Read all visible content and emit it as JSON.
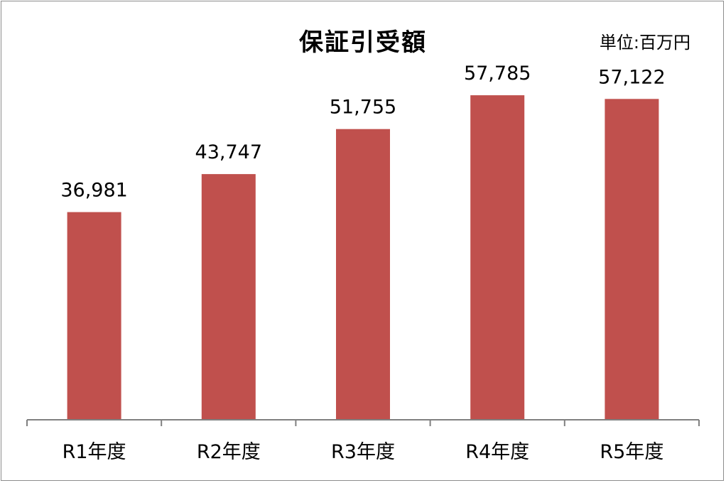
{
  "chart_data": {
    "type": "bar",
    "title": "保証引受額",
    "unit": "単位:百万円",
    "categories": [
      "R1年度",
      "R2年度",
      "R3年度",
      "R4年度",
      "R5年度"
    ],
    "values": [
      36981,
      43747,
      51755,
      57785,
      57122
    ],
    "value_labels": [
      "36,981",
      "43,747",
      "51,755",
      "57,785",
      "57,122"
    ],
    "ylim": [
      0,
      65000
    ],
    "grid": false,
    "legend": "none",
    "bar_color": "#c0504d",
    "axis_color": "#808080"
  }
}
